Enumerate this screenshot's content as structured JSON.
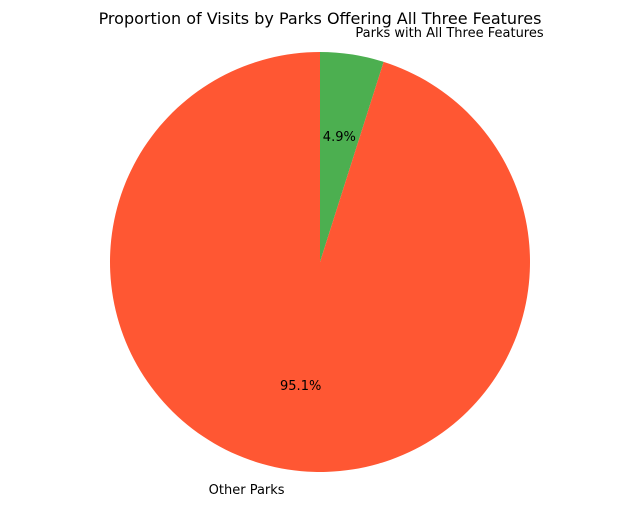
{
  "chart_data": {
    "type": "pie",
    "title": "Proportion of Visits by Parks Offering All Three Features",
    "slices": [
      {
        "label": "Parks with All Three Features",
        "value": 4.9,
        "pct_label": "4.9%",
        "color": "#4caf50"
      },
      {
        "label": "Other Parks",
        "value": 95.1,
        "pct_label": "95.1%",
        "color": "#ff5733"
      }
    ],
    "start_angle_deg": 90,
    "direction": "clockwise",
    "legend": "none"
  }
}
